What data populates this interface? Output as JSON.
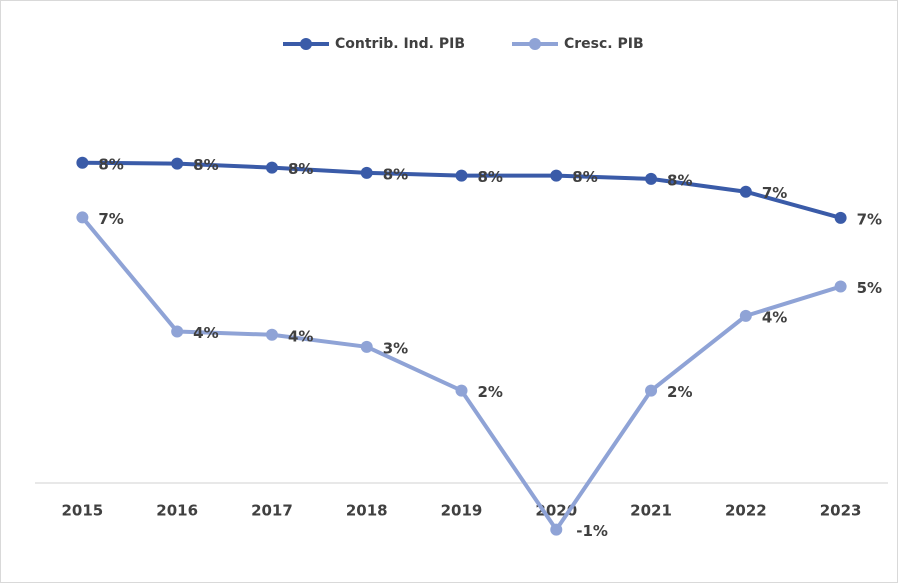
{
  "chart_data": {
    "type": "line",
    "categories": [
      "2015",
      "2016",
      "2017",
      "2018",
      "2019",
      "2020",
      "2021",
      "2022",
      "2023"
    ],
    "series": [
      {
        "name": "Contrib. Ind. PIB",
        "color": "#3a5ba8",
        "values": [
          7.96,
          7.94,
          7.84,
          7.71,
          7.64,
          7.64,
          7.56,
          7.24,
          6.59
        ],
        "value_labels": [
          "8%",
          "8%",
          "8%",
          "8%",
          "8%",
          "8%",
          "8%",
          "7%",
          "7%"
        ]
      },
      {
        "name": "Cresc. PIB",
        "color": "#8fa3d6",
        "values": [
          6.6,
          3.76,
          3.68,
          3.38,
          2.29,
          -1.17,
          2.29,
          4.15,
          4.88
        ],
        "value_labels": [
          "7%",
          "4%",
          "4%",
          "3%",
          "2%",
          "-1%",
          "2%",
          "4%",
          "5%"
        ]
      }
    ],
    "ylim": [
      -2,
      9
    ],
    "legend": "top"
  }
}
